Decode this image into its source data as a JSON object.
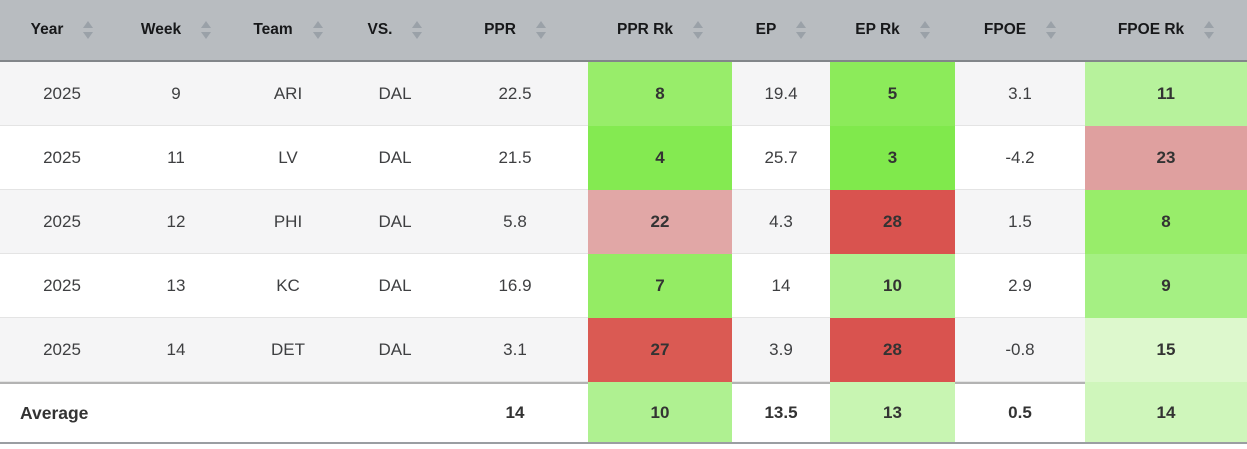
{
  "table": {
    "columns": [
      {
        "key": "year",
        "label": "Year",
        "rank": false
      },
      {
        "key": "week",
        "label": "Week",
        "rank": false
      },
      {
        "key": "team",
        "label": "Team",
        "rank": false
      },
      {
        "key": "vs",
        "label": "VS.",
        "rank": false
      },
      {
        "key": "ppr",
        "label": "PPR",
        "rank": false
      },
      {
        "key": "ppr_rk",
        "label": "PPR Rk",
        "rank": true
      },
      {
        "key": "ep",
        "label": "EP",
        "rank": false
      },
      {
        "key": "ep_rk",
        "label": "EP Rk",
        "rank": true
      },
      {
        "key": "fpoe",
        "label": "FPOE",
        "rank": false
      },
      {
        "key": "fpoe_rk",
        "label": "FPOE Rk",
        "rank": true
      }
    ],
    "rows": [
      {
        "year": "2025",
        "week": "9",
        "team": "ARI",
        "vs": "DAL",
        "ppr": "22.5",
        "ppr_rk": "8",
        "ep": "19.4",
        "ep_rk": "5",
        "fpoe": "3.1",
        "fpoe_rk": "11",
        "colors": {
          "ppr_rk": "#98ed6a",
          "ep_rk": "#8ceb5a",
          "fpoe_rk": "#b7f29c"
        }
      },
      {
        "year": "2025",
        "week": "11",
        "team": "LV",
        "vs": "DAL",
        "ppr": "21.5",
        "ppr_rk": "4",
        "ep": "25.7",
        "ep_rk": "3",
        "fpoe": "-4.2",
        "fpoe_rk": "23",
        "colors": {
          "ppr_rk": "#84ea51",
          "ep_rk": "#80e94c",
          "fpoe_rk": "#dfa09f"
        }
      },
      {
        "year": "2025",
        "week": "12",
        "team": "PHI",
        "vs": "DAL",
        "ppr": "5.8",
        "ppr_rk": "22",
        "ep": "4.3",
        "ep_rk": "28",
        "fpoe": "1.5",
        "fpoe_rk": "8",
        "colors": {
          "ppr_rk": "#e1a7a6",
          "ep_rk": "#d9534f",
          "fpoe_rk": "#98ed6a"
        }
      },
      {
        "year": "2025",
        "week": "13",
        "team": "KC",
        "vs": "DAL",
        "ppr": "16.9",
        "ppr_rk": "7",
        "ep": "14",
        "ep_rk": "10",
        "fpoe": "2.9",
        "fpoe_rk": "9",
        "colors": {
          "ppr_rk": "#94ec64",
          "ep_rk": "#aff191",
          "fpoe_rk": "#a5f083"
        }
      },
      {
        "year": "2025",
        "week": "14",
        "team": "DET",
        "vs": "DAL",
        "ppr": "3.1",
        "ppr_rk": "27",
        "ep": "3.9",
        "ep_rk": "28",
        "fpoe": "-0.8",
        "fpoe_rk": "15",
        "colors": {
          "ppr_rk": "#da5a53",
          "ep_rk": "#d9534f",
          "fpoe_rk": "#ddf8cd"
        }
      }
    ],
    "average_row": {
      "year": "Average",
      "week": "",
      "team": "",
      "vs": "",
      "ppr": "14",
      "ppr_rk": "10",
      "ep": "13.5",
      "ep_rk": "13",
      "fpoe": "0.5",
      "fpoe_rk": "14",
      "colors": {
        "ppr_rk": "#aff191",
        "ep_rk": "#c8f5b2",
        "fpoe_rk": "#cff6bb"
      }
    }
  },
  "colors": {
    "header_bg": "#b8bcc0",
    "header_border": "#82868a",
    "odd_row_bg": "#f5f5f6",
    "even_row_bg": "#ffffff",
    "row_separator": "#e4e4e4",
    "table_bottom_border": "#9a9ea2",
    "sort_arrow": "#9aa1a8",
    "rank_best_green": "#80e94c",
    "rank_worst_red": "#d9534f"
  }
}
